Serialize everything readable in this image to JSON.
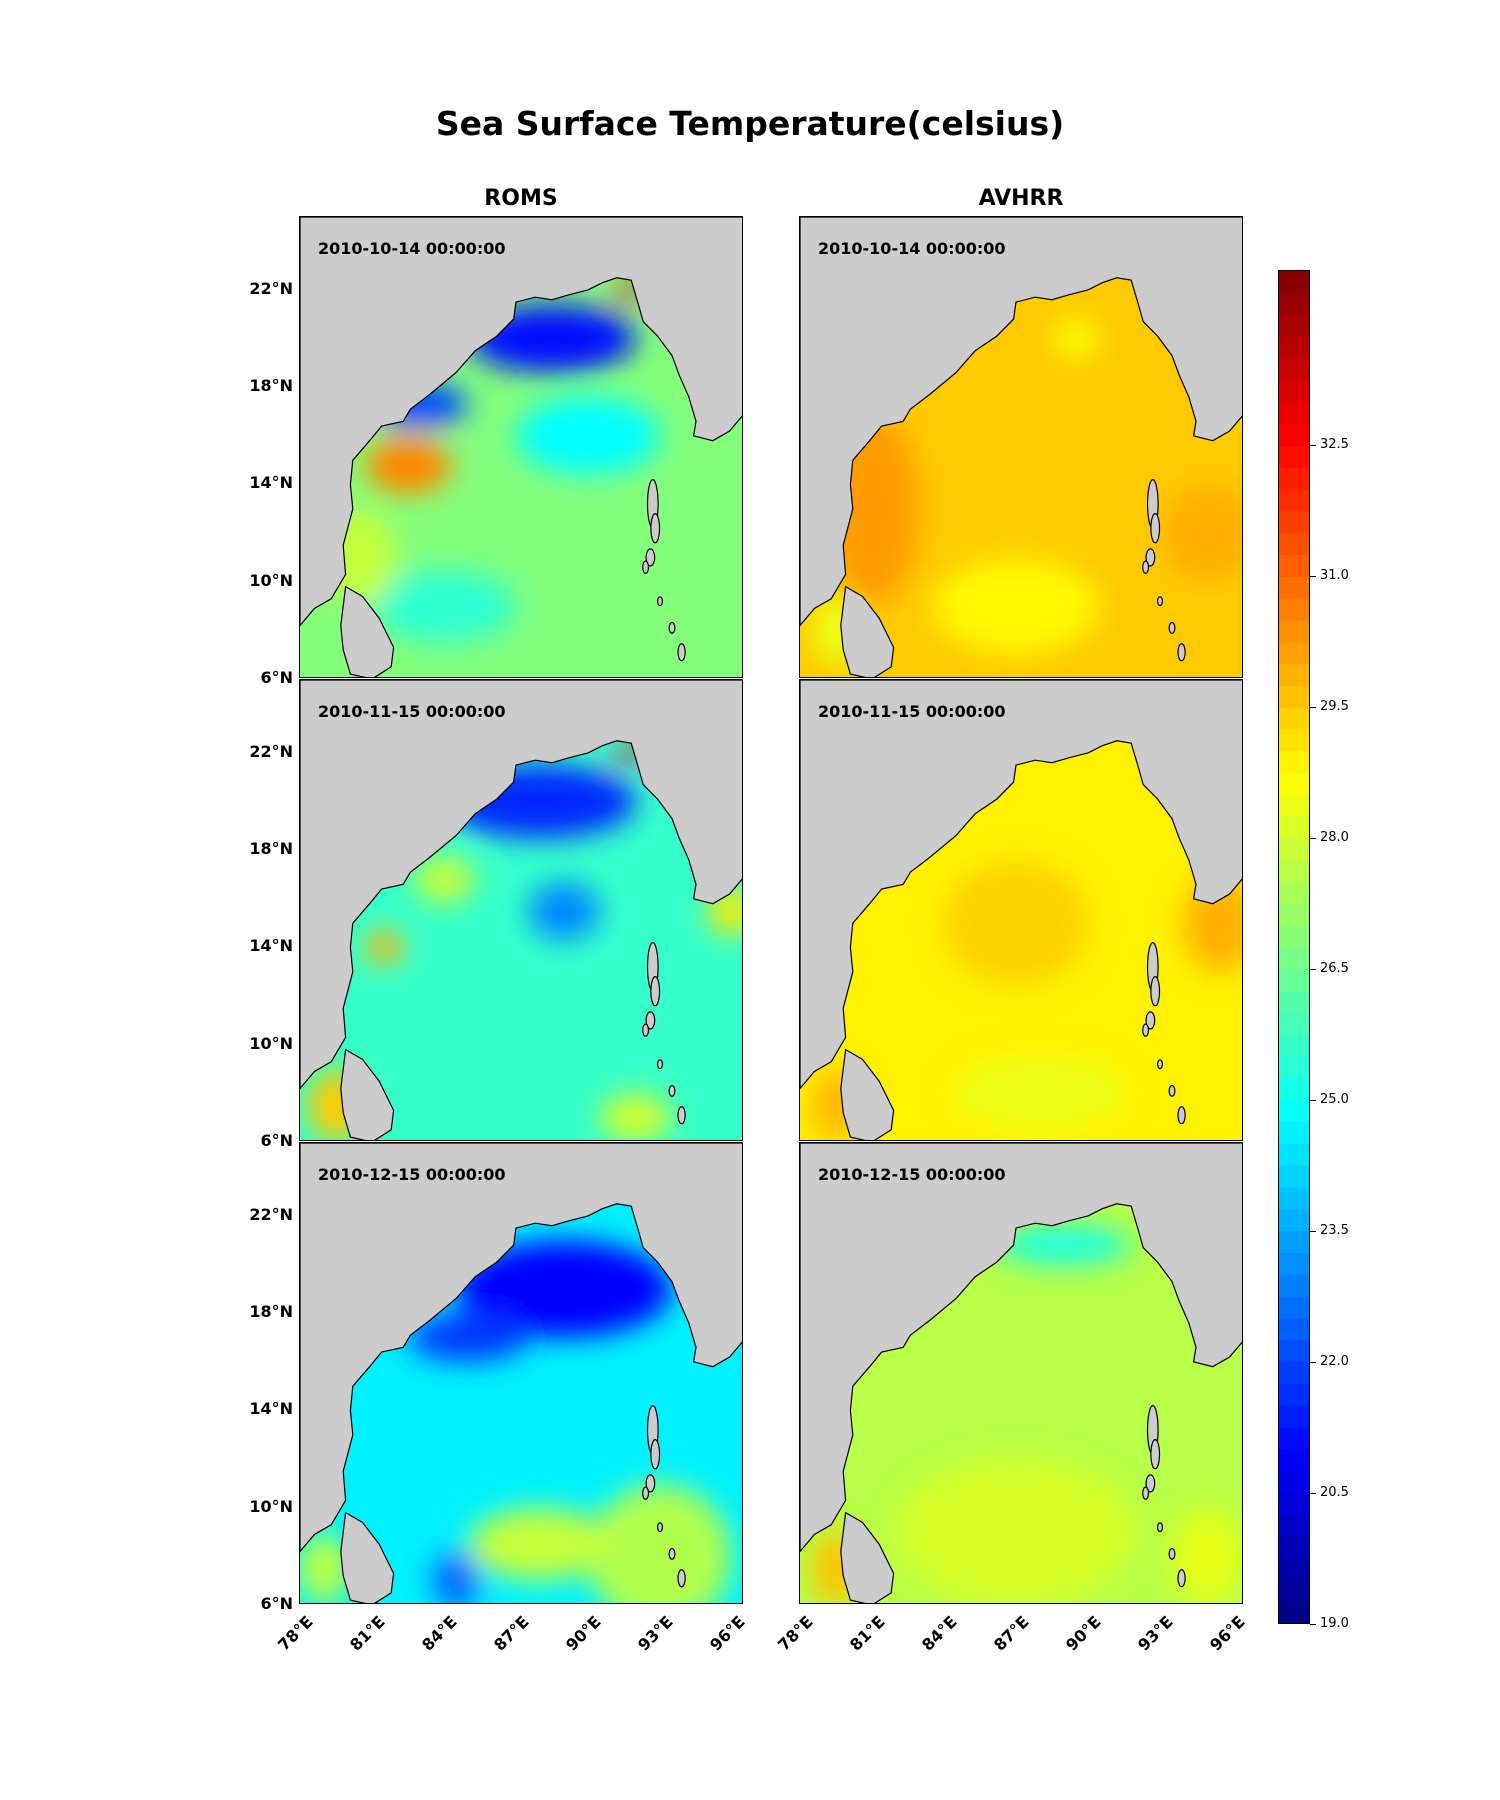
{
  "chart_data": {
    "type": "heatmap",
    "title": "Sea Surface Temperature(celsius)",
    "columns": [
      "ROMS",
      "AVHRR"
    ],
    "dates": [
      "2010-10-14 00:00:00",
      "2010-11-15 00:00:00",
      "2010-12-15 00:00:00"
    ],
    "lat_ticks": [
      "22°N",
      "18°N",
      "14°N",
      "10°N",
      "6°N"
    ],
    "lon_ticks": [
      "78°E",
      "81°E",
      "84°E",
      "87°E",
      "90°E",
      "93°E",
      "96°E"
    ],
    "lon_range": [
      78,
      96.5
    ],
    "lat_range": [
      6,
      25
    ],
    "colorbar": {
      "colormap": "jet",
      "range": [
        19.0,
        34.5
      ],
      "ticks": [
        "19.0",
        "20.5",
        "22.0",
        "23.5",
        "25.0",
        "26.5",
        "28.0",
        "29.5",
        "31.0",
        "32.5"
      ]
    },
    "panels": [
      {
        "column": "ROMS",
        "date": "2010-10-14 00:00:00",
        "background_sst": 26.8,
        "features": [
          {
            "lon": 88.5,
            "lat": 20.0,
            "sst": 21.2,
            "rlon": 3.5,
            "rlat": 1.4
          },
          {
            "lon": 83.0,
            "lat": 17.3,
            "sst": 22.0,
            "rlon": 2.0,
            "rlat": 0.9
          },
          {
            "lon": 82.5,
            "lat": 14.8,
            "sst": 30.5,
            "rlon": 1.8,
            "rlat": 1.2
          },
          {
            "lon": 91.8,
            "lat": 22.0,
            "sst": 33.0,
            "rlon": 0.8,
            "rlat": 0.3
          },
          {
            "lon": 90.0,
            "lat": 16.0,
            "sst": 24.8,
            "rlon": 3.0,
            "rlat": 1.6
          },
          {
            "lon": 84.0,
            "lat": 9.0,
            "sst": 25.5,
            "rlon": 3.0,
            "rlat": 1.5
          },
          {
            "lon": 80.5,
            "lat": 11.0,
            "sst": 27.8,
            "rlon": 1.5,
            "rlat": 2.0
          }
        ]
      },
      {
        "column": "AVHRR",
        "date": "2010-10-14 00:00:00",
        "background_sst": 29.5,
        "features": [
          {
            "lon": 81.0,
            "lat": 13.0,
            "sst": 30.2,
            "rlon": 2.0,
            "rlat": 4.0
          },
          {
            "lon": 89.5,
            "lat": 20.0,
            "sst": 28.6,
            "rlon": 1.0,
            "rlat": 0.8
          },
          {
            "lon": 87.0,
            "lat": 9.0,
            "sst": 28.8,
            "rlon": 3.5,
            "rlat": 2.0
          },
          {
            "lon": 95.0,
            "lat": 12.0,
            "sst": 29.9,
            "rlon": 2.0,
            "rlat": 2.0
          },
          {
            "lon": 79.5,
            "lat": 8.0,
            "sst": 28.4,
            "rlon": 1.0,
            "rlat": 1.5
          }
        ]
      },
      {
        "column": "ROMS",
        "date": "2010-11-15 00:00:00",
        "background_sst": 25.6,
        "features": [
          {
            "lon": 88.0,
            "lat": 20.0,
            "sst": 21.5,
            "rlon": 4.0,
            "rlat": 1.5
          },
          {
            "lon": 84.0,
            "lat": 16.8,
            "sst": 27.8,
            "rlon": 1.3,
            "rlat": 1.0
          },
          {
            "lon": 81.5,
            "lat": 14.0,
            "sst": 29.8,
            "rlon": 0.8,
            "rlat": 0.7
          },
          {
            "lon": 91.8,
            "lat": 22.0,
            "sst": 32.8,
            "rlon": 0.8,
            "rlat": 0.3
          },
          {
            "lon": 89.0,
            "lat": 15.5,
            "sst": 23.0,
            "rlon": 1.5,
            "rlat": 1.2
          },
          {
            "lon": 79.5,
            "lat": 7.5,
            "sst": 29.5,
            "rlon": 1.2,
            "rlat": 1.5
          },
          {
            "lon": 96.0,
            "lat": 15.5,
            "sst": 29.0,
            "rlon": 1.0,
            "rlat": 1.0
          },
          {
            "lon": 92.0,
            "lat": 7.0,
            "sst": 28.0,
            "rlon": 1.5,
            "rlat": 1.0
          }
        ]
      },
      {
        "column": "AVHRR",
        "date": "2010-11-15 00:00:00",
        "background_sst": 28.9,
        "features": [
          {
            "lon": 87.0,
            "lat": 15.0,
            "sst": 29.4,
            "rlon": 3.0,
            "rlat": 2.5
          },
          {
            "lon": 95.5,
            "lat": 15.0,
            "sst": 29.9,
            "rlon": 1.5,
            "rlat": 2.0
          },
          {
            "lon": 79.5,
            "lat": 7.5,
            "sst": 29.8,
            "rlon": 1.0,
            "rlat": 1.5
          },
          {
            "lon": 88.0,
            "lat": 8.0,
            "sst": 28.4,
            "rlon": 3.5,
            "rlat": 1.5
          }
        ]
      },
      {
        "column": "ROMS",
        "date": "2010-12-15 00:00:00",
        "background_sst": 24.6,
        "features": [
          {
            "lon": 89.0,
            "lat": 19.0,
            "sst": 21.0,
            "rlon": 4.5,
            "rlat": 2.0
          },
          {
            "lon": 85.0,
            "lat": 17.0,
            "sst": 21.8,
            "rlon": 2.5,
            "rlat": 1.0
          },
          {
            "lon": 84.5,
            "lat": 7.0,
            "sst": 22.5,
            "rlon": 1.0,
            "rlat": 1.2
          },
          {
            "lon": 93.0,
            "lat": 8.0,
            "sst": 27.5,
            "rlon": 3.0,
            "rlat": 3.0
          },
          {
            "lon": 88.0,
            "lat": 8.5,
            "sst": 27.8,
            "rlon": 3.0,
            "rlat": 1.5
          },
          {
            "lon": 79.0,
            "lat": 7.5,
            "sst": 27.6,
            "rlon": 1.2,
            "rlat": 1.5
          }
        ]
      },
      {
        "column": "AVHRR",
        "date": "2010-12-15 00:00:00",
        "background_sst": 27.6,
        "features": [
          {
            "lon": 89.0,
            "lat": 20.8,
            "sst": 25.2,
            "rlon": 2.8,
            "rlat": 0.8
          },
          {
            "lon": 87.0,
            "lat": 9.0,
            "sst": 28.1,
            "rlon": 5.0,
            "rlat": 3.0
          },
          {
            "lon": 79.5,
            "lat": 7.5,
            "sst": 29.6,
            "rlon": 1.0,
            "rlat": 1.5
          },
          {
            "lon": 95.0,
            "lat": 8.0,
            "sst": 28.3,
            "rlon": 1.5,
            "rlat": 2.0
          }
        ]
      }
    ]
  }
}
